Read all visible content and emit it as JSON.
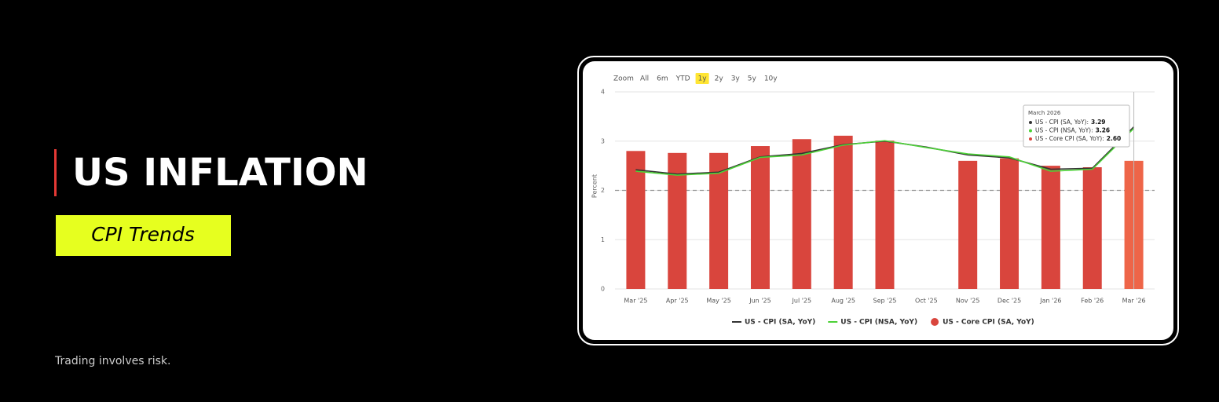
{
  "banner": {
    "title": "US INFLATION",
    "subtitle": "CPI Trends",
    "disclaimer": "Trading involves risk."
  },
  "zoom": {
    "label": "Zoom",
    "options": [
      "All",
      "6m",
      "YTD",
      "1y",
      "2y",
      "3y",
      "5y",
      "10y"
    ],
    "active": "1y"
  },
  "tooltip": {
    "title": "March 2026",
    "items": [
      {
        "label": "US - CPI (SA, YoY):",
        "value": "3.29",
        "color": "#333333"
      },
      {
        "label": "US - CPI (NSA, YoY):",
        "value": "3.26",
        "color": "#4cd137"
      },
      {
        "label": "US - Core CPI (SA, YoY):",
        "value": "2.60",
        "color": "#d9453d"
      }
    ]
  },
  "chart_data": {
    "type": "bar",
    "y_label": "Percent",
    "categories": [
      "Mar '25",
      "Apr '25",
      "May '25",
      "Jun '25",
      "Jul '25",
      "Aug '25",
      "Sep '25",
      "Oct '25",
      "Nov '25",
      "Dec '25",
      "Jan '26",
      "Feb '26",
      "Mar '26"
    ],
    "series": [
      {
        "name": "US - CPI (SA, YoY)",
        "type": "line",
        "color": "#333333",
        "values": [
          2.42,
          2.33,
          2.37,
          2.68,
          2.75,
          2.93,
          3.0,
          2.88,
          2.72,
          2.66,
          2.43,
          2.45,
          3.29
        ]
      },
      {
        "name": "US - CPI (NSA, YoY)",
        "type": "line",
        "color": "#4cd137",
        "values": [
          2.39,
          2.31,
          2.35,
          2.67,
          2.72,
          2.92,
          3.01,
          2.87,
          2.74,
          2.68,
          2.39,
          2.43,
          3.26
        ]
      },
      {
        "name": "US - Core CPI (SA, YoY)",
        "type": "bar",
        "color": "#d9453d",
        "colors": [
          "#d9453d",
          "#d9453d",
          "#d9453d",
          "#d9453d",
          "#d9453d",
          "#d9453d",
          "#d9453d",
          "#d9453d",
          "#d9453d",
          "#d9453d",
          "#d9453d",
          "#d9453d",
          "#ee6548"
        ],
        "values": [
          2.8,
          2.76,
          2.76,
          2.9,
          3.04,
          3.11,
          3.01,
          null,
          2.6,
          2.65,
          2.5,
          2.47,
          2.6
        ]
      }
    ],
    "ylim": [
      0,
      4
    ],
    "yticks": [
      0,
      1,
      2,
      3,
      4
    ],
    "grid": true,
    "reference_line": 2
  }
}
